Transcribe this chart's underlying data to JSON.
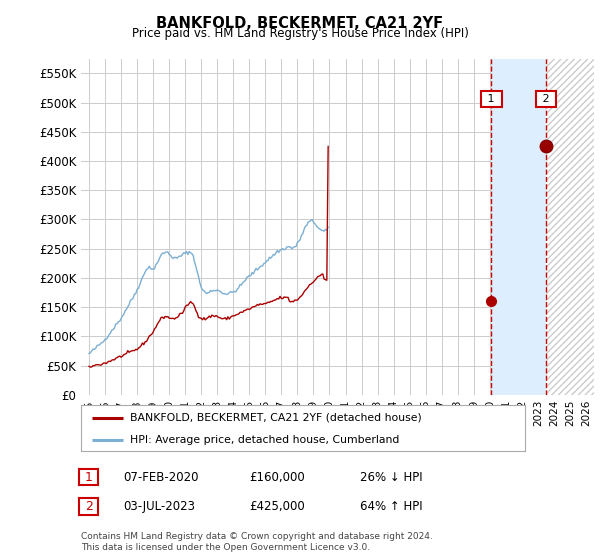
{
  "title": "BANKFOLD, BECKERMET, CA21 2YF",
  "subtitle": "Price paid vs. HM Land Registry's House Price Index (HPI)",
  "legend_line1": "BANKFOLD, BECKERMET, CA21 2YF (detached house)",
  "legend_line2": "HPI: Average price, detached house, Cumberland",
  "footnote": "Contains HM Land Registry data © Crown copyright and database right 2024.\nThis data is licensed under the Open Government Licence v3.0.",
  "annotation1": {
    "label": "1",
    "date": "07-FEB-2020",
    "price": "£160,000",
    "pct": "26% ↓ HPI",
    "x_year": 2020.1,
    "y_val": 160000
  },
  "annotation2": {
    "label": "2",
    "date": "03-JUL-2023",
    "price": "£425,000",
    "pct": "64% ↑ HPI",
    "x_year": 2023.5,
    "y_val": 425000
  },
  "ylim": [
    0,
    575000
  ],
  "xlim": [
    1994.5,
    2026.5
  ],
  "yticks": [
    0,
    50000,
    100000,
    150000,
    200000,
    250000,
    300000,
    350000,
    400000,
    450000,
    500000,
    550000
  ],
  "ytick_labels": [
    "£0",
    "£50K",
    "£100K",
    "£150K",
    "£200K",
    "£250K",
    "£300K",
    "£350K",
    "£400K",
    "£450K",
    "£500K",
    "£550K"
  ],
  "xticks": [
    1995,
    1996,
    1997,
    1998,
    1999,
    2000,
    2001,
    2002,
    2003,
    2004,
    2005,
    2006,
    2007,
    2008,
    2009,
    2010,
    2011,
    2012,
    2013,
    2014,
    2015,
    2016,
    2017,
    2018,
    2019,
    2020,
    2021,
    2022,
    2023,
    2024,
    2025,
    2026
  ],
  "red_line_color": "#aa0000",
  "blue_line_color": "#7bafd4",
  "dashed_color": "#cc0000",
  "box_color": "#cc0000",
  "background_color": "#ffffff",
  "grid_color": "#cccccc",
  "shade_color": "#ddeeff",
  "hatch_color": "#cccccc"
}
